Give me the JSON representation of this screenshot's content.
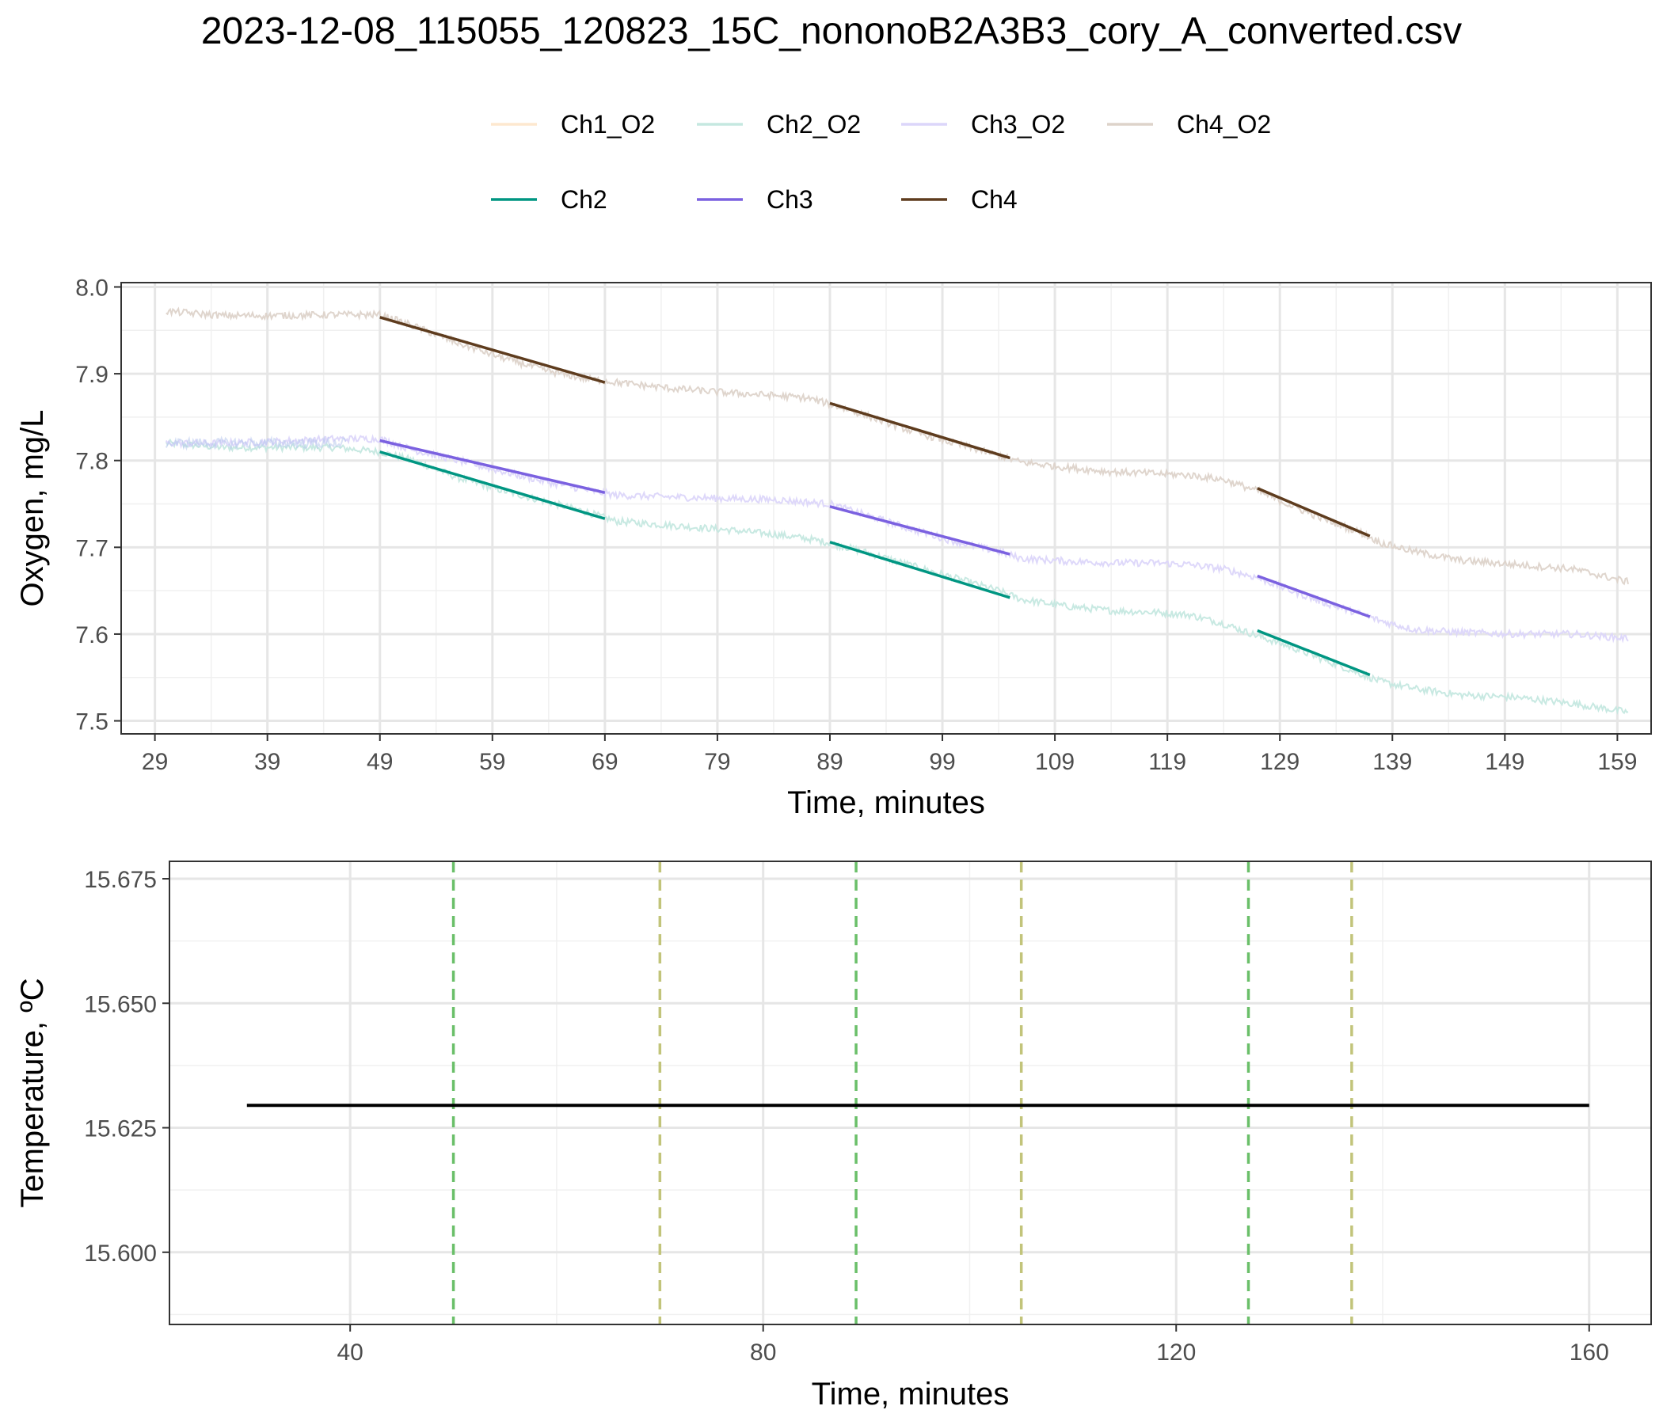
{
  "figure": {
    "title": "2023-12-08_115055_120823_15C_nononoB2A3B3_cory_A_converted.csv"
  },
  "colors": {
    "Ch1_O2": "#fde8cf",
    "Ch2_O2": "#c5e8e0",
    "Ch3_O2": "#dcd6fa",
    "Ch4_O2": "#ddd3ca",
    "Ch2": "#009682",
    "Ch3": "#7b61e0",
    "Ch4": "#5e3c1e",
    "vline_start": "#6abf69",
    "vline_end": "#c2c47a",
    "temperature": "#000000"
  },
  "chart_data": [
    {
      "type": "line",
      "title": "2023-12-08_115055_120823_15C_nononoB2A3B3_cory_A_converted.csv",
      "xlabel": "Time, minutes",
      "ylabel": "Oxygen, mg/L",
      "xlim": [
        26,
        162
      ],
      "ylim": [
        7.485,
        8.005
      ],
      "xticks": [
        29,
        39,
        49,
        59,
        69,
        79,
        89,
        99,
        109,
        119,
        129,
        139,
        149,
        159
      ],
      "yticks": [
        7.5,
        7.6,
        7.7,
        7.8,
        7.9,
        8.0
      ],
      "ytick_labels": [
        "7.5",
        "7.6",
        "7.7",
        "7.8",
        "7.9",
        "8.0"
      ],
      "grid": true,
      "legend_position": "top",
      "legend_rows": [
        [
          "Ch1_O2",
          "Ch2_O2",
          "Ch3_O2",
          "Ch4_O2"
        ],
        [
          "Ch2",
          "Ch3",
          "Ch4"
        ]
      ],
      "series": [
        {
          "name": "Ch1_O2",
          "x": [
            30
          ],
          "y": [
            7.82
          ]
        },
        {
          "name": "Ch2_O2",
          "x": [
            30,
            35,
            40,
            45,
            49,
            52,
            56,
            60,
            64,
            67,
            70,
            75,
            80,
            84,
            87,
            89,
            92,
            96,
            100,
            104,
            106,
            110,
            114,
            118,
            121,
            124,
            127,
            130,
            133,
            136,
            138,
            141,
            145,
            150,
            155,
            160
          ],
          "y": [
            7.82,
            7.815,
            7.815,
            7.815,
            7.81,
            7.8,
            7.78,
            7.765,
            7.752,
            7.742,
            7.73,
            7.725,
            7.72,
            7.715,
            7.71,
            7.705,
            7.695,
            7.68,
            7.665,
            7.65,
            7.64,
            7.632,
            7.627,
            7.625,
            7.622,
            7.612,
            7.598,
            7.585,
            7.57,
            7.555,
            7.545,
            7.537,
            7.53,
            7.527,
            7.52,
            7.51
          ]
        },
        {
          "name": "Ch3_O2",
          "x": [
            30,
            35,
            40,
            45,
            49,
            52,
            56,
            60,
            64,
            67,
            70,
            75,
            80,
            84,
            87,
            89,
            92,
            96,
            100,
            104,
            106,
            110,
            114,
            118,
            121,
            124,
            127,
            130,
            133,
            136,
            138,
            141,
            145,
            150,
            155,
            160
          ],
          "y": [
            7.82,
            7.82,
            7.822,
            7.825,
            7.825,
            7.812,
            7.8,
            7.787,
            7.775,
            7.767,
            7.76,
            7.758,
            7.756,
            7.755,
            7.752,
            7.75,
            7.738,
            7.722,
            7.707,
            7.695,
            7.687,
            7.684,
            7.682,
            7.682,
            7.68,
            7.675,
            7.665,
            7.65,
            7.636,
            7.624,
            7.615,
            7.605,
            7.602,
            7.6,
            7.6,
            7.595
          ]
        },
        {
          "name": "Ch4_O2",
          "x": [
            30,
            35,
            40,
            45,
            49,
            52,
            56,
            60,
            64,
            67,
            70,
            75,
            80,
            84,
            87,
            89,
            92,
            96,
            100,
            104,
            106,
            110,
            114,
            118,
            121,
            124,
            127,
            130,
            133,
            136,
            138,
            141,
            145,
            150,
            155,
            160
          ],
          "y": [
            7.972,
            7.967,
            7.967,
            7.968,
            7.968,
            7.955,
            7.935,
            7.918,
            7.903,
            7.895,
            7.89,
            7.883,
            7.878,
            7.875,
            7.872,
            7.865,
            7.853,
            7.835,
            7.82,
            7.806,
            7.798,
            7.792,
            7.787,
            7.785,
            7.783,
            7.778,
            7.765,
            7.748,
            7.732,
            7.718,
            7.705,
            7.695,
            7.685,
            7.68,
            7.675,
            7.66
          ]
        }
      ],
      "fits": [
        {
          "name": "Ch2",
          "segments": [
            {
              "x": [
                49,
                69
              ],
              "y": [
                7.81,
                7.733
              ]
            },
            {
              "x": [
                89,
                105
              ],
              "y": [
                7.706,
                7.642
              ]
            },
            {
              "x": [
                127,
                137
              ],
              "y": [
                7.604,
                7.553
              ]
            }
          ]
        },
        {
          "name": "Ch3",
          "segments": [
            {
              "x": [
                49,
                69
              ],
              "y": [
                7.823,
                7.763
              ]
            },
            {
              "x": [
                89,
                105
              ],
              "y": [
                7.747,
                7.692
              ]
            },
            {
              "x": [
                127,
                137
              ],
              "y": [
                7.667,
                7.62
              ]
            }
          ]
        },
        {
          "name": "Ch4",
          "segments": [
            {
              "x": [
                49,
                69
              ],
              "y": [
                7.965,
                7.89
              ]
            },
            {
              "x": [
                89,
                105
              ],
              "y": [
                7.866,
                7.803
              ]
            },
            {
              "x": [
                127,
                137
              ],
              "y": [
                7.768,
                7.713
              ]
            }
          ]
        }
      ]
    },
    {
      "type": "line",
      "xlabel": "Time, minutes",
      "ylabel": "Temperature, ºC",
      "xlim": [
        22.5,
        166
      ],
      "ylim": [
        15.5855,
        15.6785
      ],
      "xticks": [
        40,
        80,
        120,
        160
      ],
      "yticks": [
        15.6,
        15.625,
        15.65,
        15.675
      ],
      "ytick_labels": [
        "15.600",
        "15.625",
        "15.650",
        "15.675"
      ],
      "grid": true,
      "series": [
        {
          "name": "temperature",
          "x": [
            30,
            160
          ],
          "y": [
            15.6295,
            15.6295
          ]
        }
      ],
      "vlines": [
        {
          "x": 50,
          "kind": "start"
        },
        {
          "x": 70,
          "kind": "end"
        },
        {
          "x": 89,
          "kind": "start"
        },
        {
          "x": 105,
          "kind": "end"
        },
        {
          "x": 127,
          "kind": "start"
        },
        {
          "x": 137,
          "kind": "end"
        }
      ]
    }
  ]
}
